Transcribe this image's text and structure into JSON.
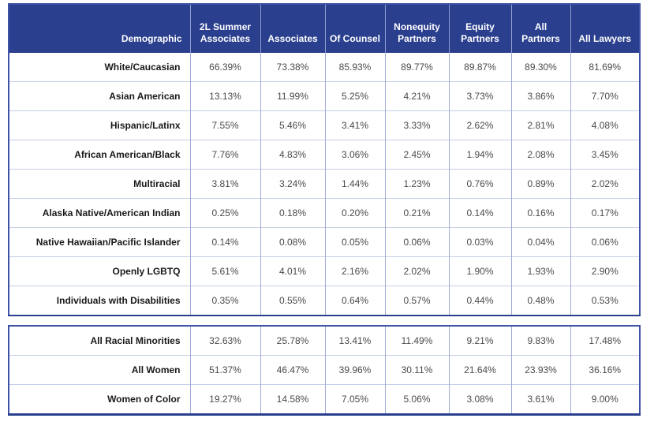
{
  "colors": {
    "header_bg": "#2A3F8E",
    "header_text": "#FFFFFF",
    "outer_border": "#3E52A6",
    "row_divider": "#C6CDE9",
    "column_divider": "#9FABD6",
    "value_text": "#4A4A4A",
    "label_text": "#191919"
  },
  "chart_data": {
    "type": "table",
    "title": "",
    "columns": [
      "Demographic",
      "2L Summer Associates",
      "Associates",
      "Of Counsel",
      "Nonequity Partners",
      "Equity Partners",
      "All Partners",
      "All Lawyers"
    ],
    "rows": [
      {
        "label": "White/Caucasian",
        "values": [
          "66.39%",
          "73.38%",
          "85.93%",
          "89.77%",
          "89.87%",
          "89.30%",
          "81.69%"
        ]
      },
      {
        "label": "Asian American",
        "values": [
          "13.13%",
          "11.99%",
          "5.25%",
          "4.21%",
          "3.73%",
          "3.86%",
          "7.70%"
        ]
      },
      {
        "label": "Hispanic/Latinx",
        "values": [
          "7.55%",
          "5.46%",
          "3.41%",
          "3.33%",
          "2.62%",
          "2.81%",
          "4.08%"
        ]
      },
      {
        "label": "African American/Black",
        "values": [
          "7.76%",
          "4.83%",
          "3.06%",
          "2.45%",
          "1.94%",
          "2.08%",
          "3.45%"
        ]
      },
      {
        "label": "Multiracial",
        "values": [
          "3.81%",
          "3.24%",
          "1.44%",
          "1.23%",
          "0.76%",
          "0.89%",
          "2.02%"
        ]
      },
      {
        "label": "Alaska Native/American Indian",
        "values": [
          "0.25%",
          "0.18%",
          "0.20%",
          "0.21%",
          "0.14%",
          "0.16%",
          "0.17%"
        ]
      },
      {
        "label": "Native Hawaiian/Pacific Islander",
        "values": [
          "0.14%",
          "0.08%",
          "0.05%",
          "0.06%",
          "0.03%",
          "0.04%",
          "0.06%"
        ]
      },
      {
        "label": "Openly LGBTQ",
        "values": [
          "5.61%",
          "4.01%",
          "2.16%",
          "2.02%",
          "1.90%",
          "1.93%",
          "2.90%"
        ]
      },
      {
        "label": "Individuals with Disabilities",
        "values": [
          "0.35%",
          "0.55%",
          "0.64%",
          "0.57%",
          "0.44%",
          "0.48%",
          "0.53%"
        ]
      }
    ],
    "summary_rows": [
      {
        "label": "All Racial Minorities",
        "values": [
          "32.63%",
          "25.78%",
          "13.41%",
          "11.49%",
          "9.21%",
          "9.83%",
          "17.48%"
        ]
      },
      {
        "label": "All Women",
        "values": [
          "51.37%",
          "46.47%",
          "39.96%",
          "30.11%",
          "21.64%",
          "23.93%",
          "36.16%"
        ]
      },
      {
        "label": "Women of Color",
        "values": [
          "19.27%",
          "14.58%",
          "7.05%",
          "5.06%",
          "3.08%",
          "3.61%",
          "9.00%"
        ]
      }
    ]
  }
}
